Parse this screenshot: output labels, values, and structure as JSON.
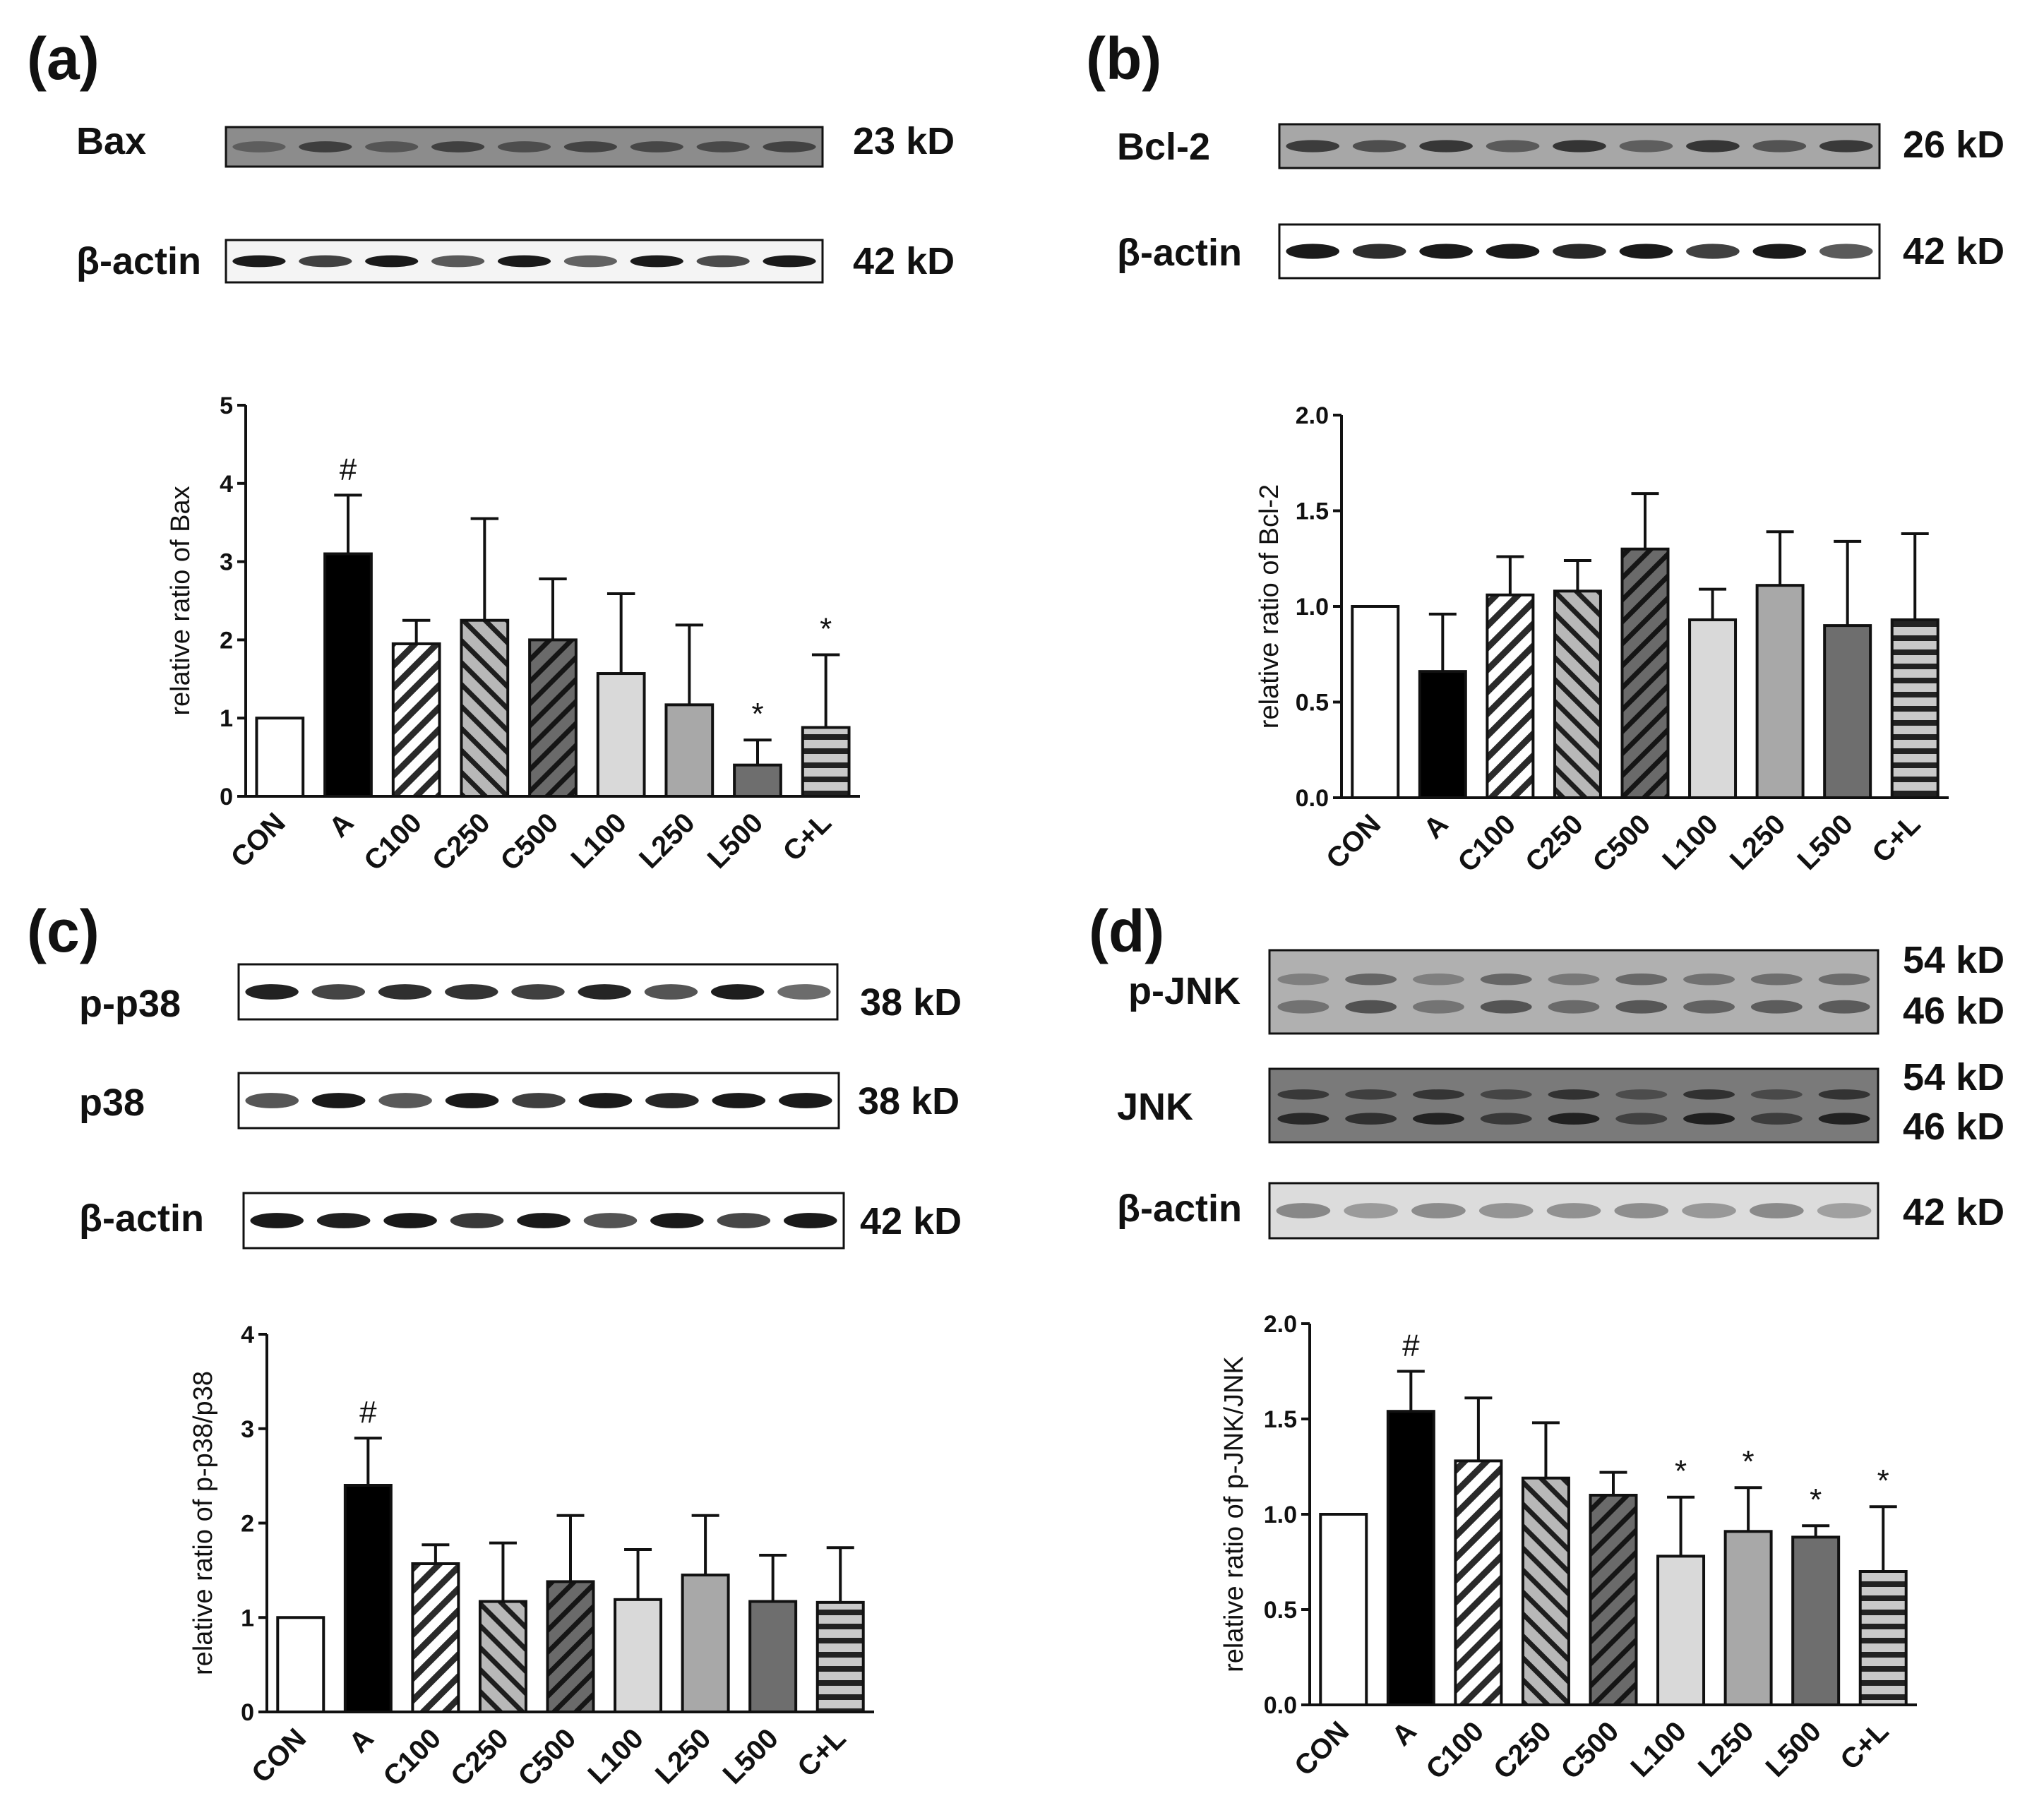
{
  "colors": {
    "frame": "#111111",
    "band_dark": "#1a1a1a",
    "blot_gray": "#9a9a9a",
    "blot_light": "#f2f2f2",
    "A_fill": "#000000",
    "L100_fill": "#d9d9d9",
    "L250_fill": "#a8a8a8",
    "L500_fill": "#6e6e6e"
  },
  "chart_data": [
    {
      "panel": "a",
      "panel_label": "(a)",
      "type": "bar",
      "blots": [
        {
          "label": "Bax",
          "kd": "23 kD"
        },
        {
          "label": "β-actin",
          "kd": "42 kD"
        }
      ],
      "categories": [
        "CON",
        "A",
        "C100",
        "C250",
        "C500",
        "L100",
        "L250",
        "L500",
        "C+L"
      ],
      "patterns": [
        "white",
        "black",
        "hatch-back-light",
        "hatch-fwd-mid",
        "hatch-back-dark",
        "light",
        "mid",
        "dark",
        "horizontal"
      ],
      "values": [
        1.0,
        3.1,
        1.95,
        2.25,
        2.0,
        1.57,
        1.17,
        0.4,
        0.88
      ],
      "errors": [
        0,
        0.75,
        0.3,
        1.3,
        0.78,
        1.02,
        1.02,
        0.32,
        0.93
      ],
      "markers": [
        "",
        "#",
        "",
        "",
        "",
        "",
        "",
        "*",
        "*"
      ],
      "ylabel": "relative ratio of Bax",
      "ylim": [
        0,
        5
      ],
      "yticks": [
        0,
        1,
        2,
        3,
        4,
        5
      ],
      "ytick_labels": [
        "0",
        "1",
        "2",
        "3",
        "4",
        "5"
      ]
    },
    {
      "panel": "b",
      "panel_label": "(b)",
      "type": "bar",
      "blots": [
        {
          "label": "Bcl-2",
          "kd": "26 kD"
        },
        {
          "label": "β-actin",
          "kd": "42 kD"
        }
      ],
      "categories": [
        "CON",
        "A",
        "C100",
        "C250",
        "C500",
        "L100",
        "L250",
        "L500",
        "C+L"
      ],
      "patterns": [
        "white",
        "black",
        "hatch-back-light",
        "hatch-fwd-mid",
        "hatch-back-dark",
        "light",
        "mid",
        "dark",
        "horizontal"
      ],
      "values": [
        1.0,
        0.66,
        1.06,
        1.08,
        1.3,
        0.93,
        1.11,
        0.9,
        0.93
      ],
      "errors": [
        0,
        0.3,
        0.2,
        0.16,
        0.29,
        0.16,
        0.28,
        0.44,
        0.45
      ],
      "markers": [
        "",
        "",
        "",
        "",
        "",
        "",
        "",
        "",
        ""
      ],
      "ylabel": "relative ratio of Bcl-2",
      "ylim": [
        0,
        2
      ],
      "yticks": [
        0,
        0.5,
        1,
        1.5,
        2
      ],
      "ytick_labels": [
        "0.0",
        "0.5",
        "1.0",
        "1.5",
        "2.0"
      ]
    },
    {
      "panel": "c",
      "panel_label": "(c)",
      "type": "bar",
      "blots": [
        {
          "label": "p-p38",
          "kd": "38 kD"
        },
        {
          "label": "p38",
          "kd": "38 kD"
        },
        {
          "label": "β-actin",
          "kd": "42 kD"
        }
      ],
      "categories": [
        "CON",
        "A",
        "C100",
        "C250",
        "C500",
        "L100",
        "L250",
        "L500",
        "C+L"
      ],
      "patterns": [
        "white",
        "black",
        "hatch-back-light",
        "hatch-fwd-mid",
        "hatch-back-dark",
        "light",
        "mid",
        "dark",
        "horizontal"
      ],
      "values": [
        1.0,
        2.4,
        1.57,
        1.17,
        1.38,
        1.19,
        1.45,
        1.17,
        1.16
      ],
      "errors": [
        0,
        0.5,
        0.2,
        0.62,
        0.7,
        0.53,
        0.63,
        0.49,
        0.58
      ],
      "markers": [
        "",
        "#",
        "",
        "",
        "",
        "",
        "",
        "",
        ""
      ],
      "ylabel": "relative ratio of p-p38/p38",
      "ylim": [
        0,
        4
      ],
      "yticks": [
        0,
        1,
        2,
        3,
        4
      ],
      "ytick_labels": [
        "0",
        "1",
        "2",
        "3",
        "4"
      ]
    },
    {
      "panel": "d",
      "panel_label": "(d)",
      "type": "bar",
      "blots": [
        {
          "label": "p-JNK",
          "kd": "54 kD",
          "kd2": "46 kD"
        },
        {
          "label": "JNK",
          "kd": "54 kD",
          "kd2": "46 kD"
        },
        {
          "label": "β-actin",
          "kd": "42 kD"
        }
      ],
      "categories": [
        "CON",
        "A",
        "C100",
        "C250",
        "C500",
        "L100",
        "L250",
        "L500",
        "C+L"
      ],
      "patterns": [
        "white",
        "black",
        "hatch-back-light",
        "hatch-fwd-mid",
        "hatch-back-dark",
        "light",
        "mid",
        "dark",
        "horizontal"
      ],
      "values": [
        1.0,
        1.54,
        1.28,
        1.19,
        1.1,
        0.78,
        0.91,
        0.88,
        0.7
      ],
      "errors": [
        0,
        0.21,
        0.33,
        0.29,
        0.12,
        0.31,
        0.23,
        0.06,
        0.34
      ],
      "markers": [
        "",
        "#",
        "",
        "",
        "",
        "*",
        "*",
        "*",
        "*"
      ],
      "ylabel": "relative ratio of p-JNK/JNK",
      "ylim": [
        0,
        2
      ],
      "yticks": [
        0,
        0.5,
        1,
        1.5,
        2
      ],
      "ytick_labels": [
        "0.0",
        "0.5",
        "1.0",
        "1.5",
        "2.0"
      ]
    }
  ]
}
